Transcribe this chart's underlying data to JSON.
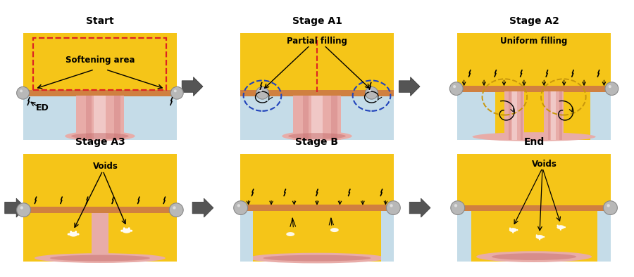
{
  "stages": [
    {
      "title": "Start",
      "row": 0,
      "col": 0
    },
    {
      "title": "Stage A1",
      "row": 0,
      "col": 1
    },
    {
      "title": "Stage A2",
      "row": 0,
      "col": 2
    },
    {
      "title": "Stage A3",
      "row": 1,
      "col": 0
    },
    {
      "title": "Stage B",
      "row": 1,
      "col": 1
    },
    {
      "title": "End",
      "row": 1,
      "col": 2
    }
  ],
  "bg_color": "#ffffff",
  "yellow_color": "#F5C518",
  "light_blue_color": "#C5DCE8",
  "pink_color": "#C87070",
  "light_pink_color": "#E8ACA8",
  "gray_color": "#A8A8A8",
  "orange_color": "#D06020",
  "dark_orange": "#CC4400"
}
